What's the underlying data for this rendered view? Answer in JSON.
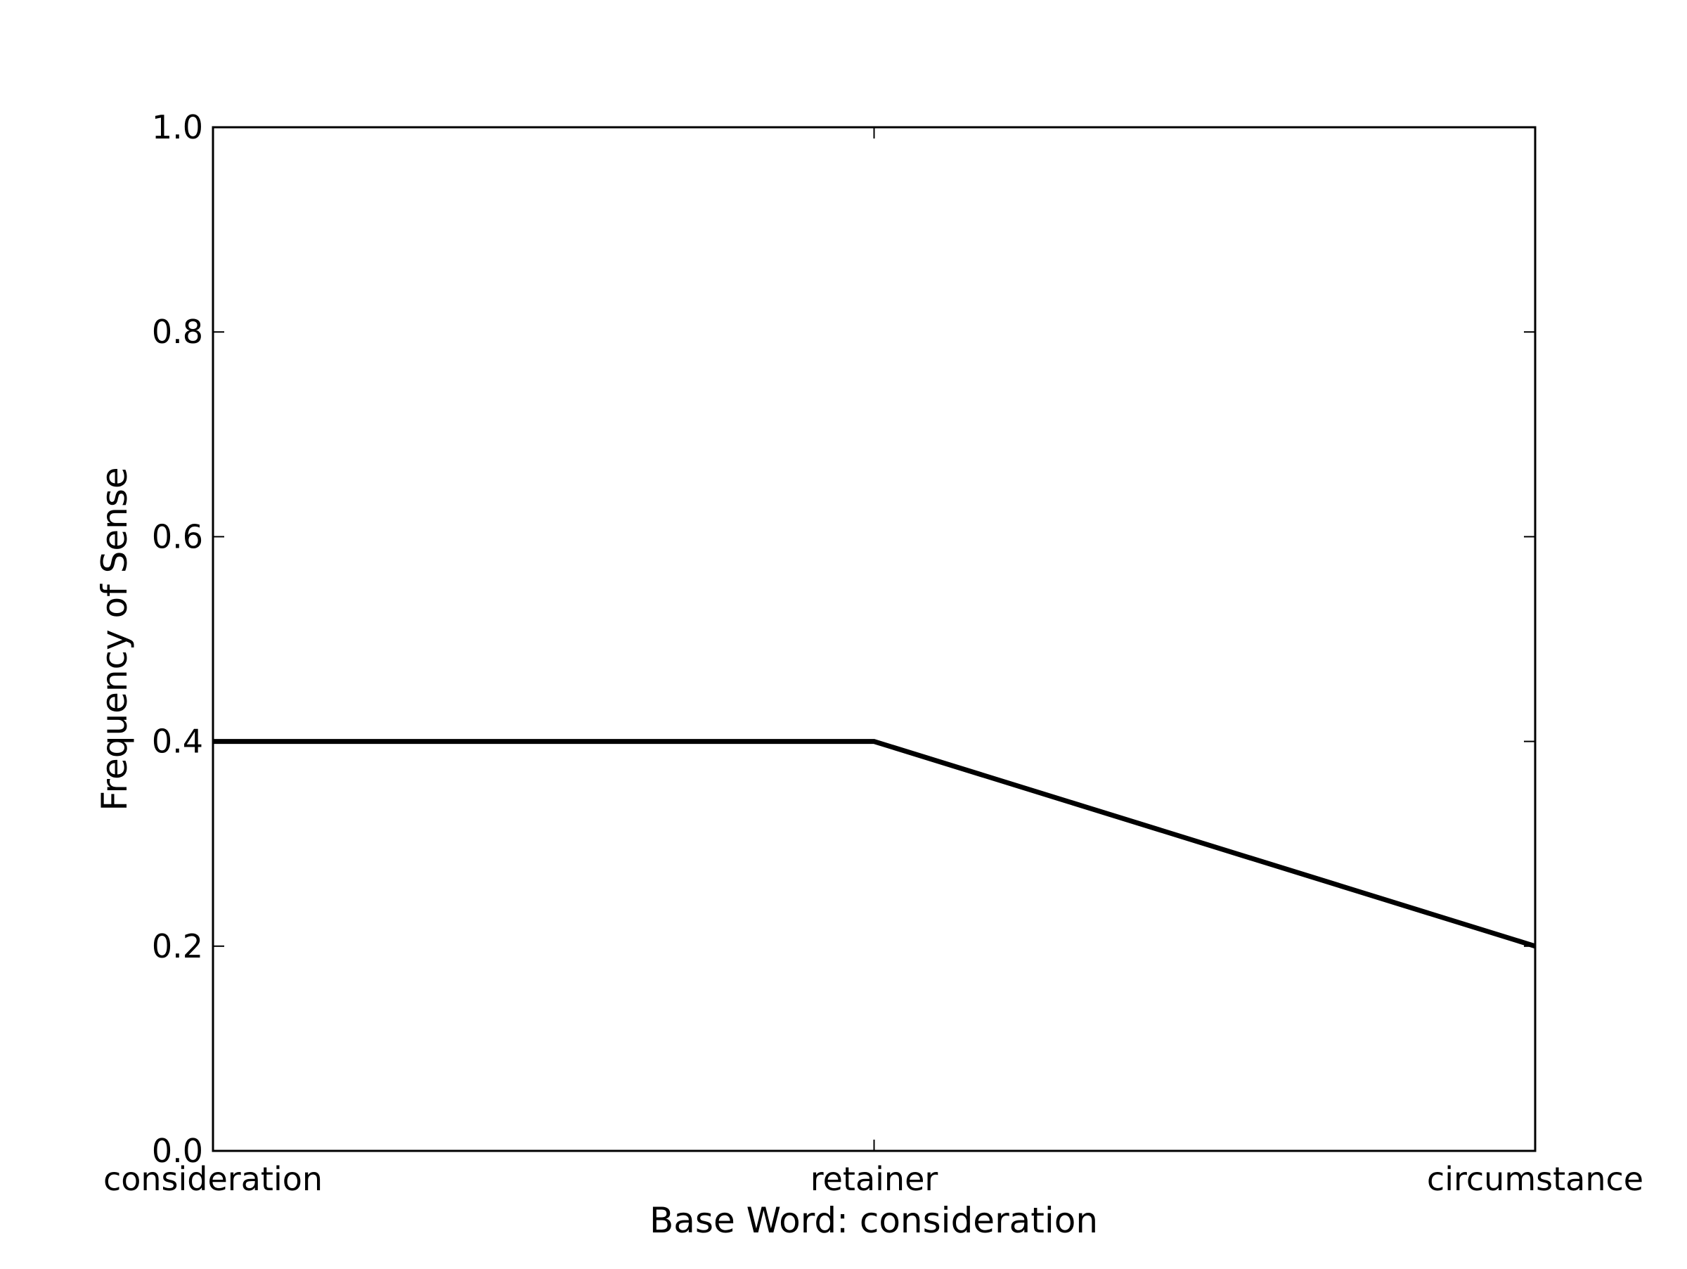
{
  "chart_data": {
    "type": "line",
    "title": "",
    "xlabel": "Base Word: consideration",
    "ylabel": "Frequency of Sense",
    "categories": [
      "consideration",
      "retainer",
      "circumstance"
    ],
    "series": [
      {
        "values": [
          0.4,
          0.4,
          0.2
        ],
        "color": "#000000"
      }
    ],
    "ylim": [
      0.0,
      1.0
    ],
    "yticks": [
      "0.0",
      "0.2",
      "0.4",
      "0.6",
      "0.8",
      "1.0"
    ],
    "grid": false,
    "legend": "none"
  }
}
